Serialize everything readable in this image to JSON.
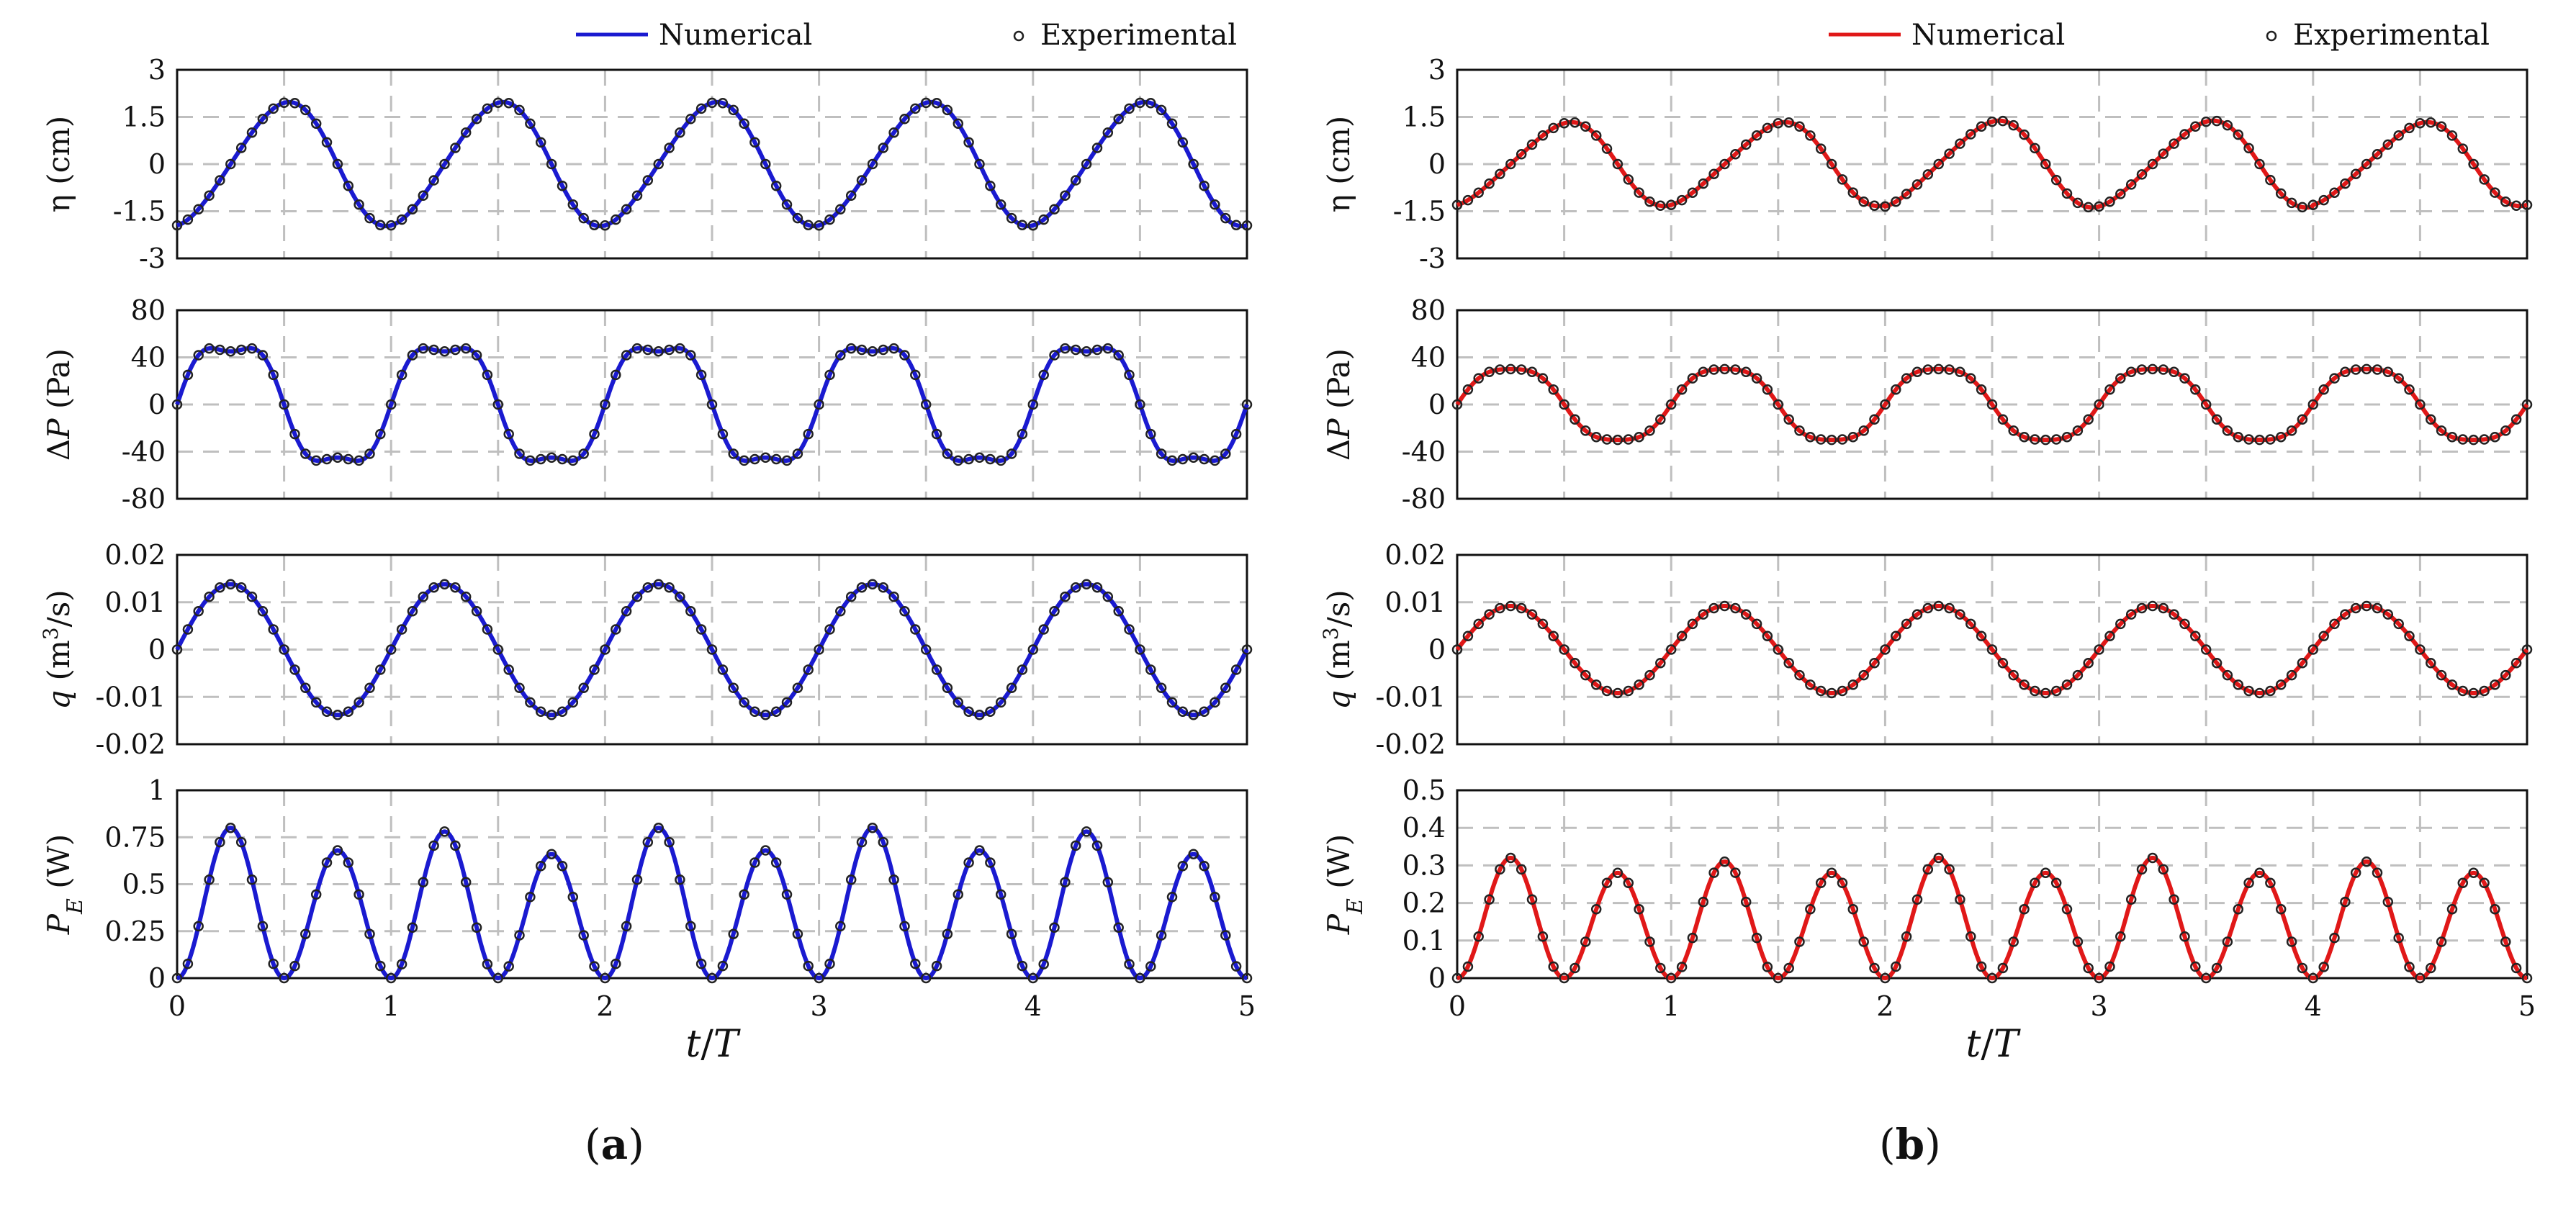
{
  "chart_data": [
    {
      "id": "a",
      "caption": {
        "open": "(",
        "letter": "a",
        "close": ")"
      },
      "color": "#1a1ad0",
      "legend": {
        "line": "Numerical",
        "marker": "Experimental"
      },
      "xlabel": {
        "t": "t",
        "slash": "/",
        "T": "T"
      },
      "xlim": [
        0,
        5
      ],
      "xticks": [
        "0",
        "1",
        "2",
        "3",
        "4",
        "5"
      ],
      "panels": [
        {
          "key": "eta",
          "type": "line",
          "ylabel": {
            "parts": [
              {
                "t": "η (cm)",
                "s": ""
              }
            ]
          },
          "ylim": [
            -3,
            3
          ],
          "yticks": [
            "-3",
            "-1.5",
            "0",
            "1.5",
            "3"
          ],
          "grid": true,
          "model": {
            "kind": "sine",
            "offset": 0.15,
            "amps": [
              1.95,
              1.95,
              1.95,
              1.95,
              1.95
            ],
            "amp_dev": 0.1,
            "phase": -90,
            "mod": 0.6
          }
        },
        {
          "key": "dp",
          "type": "line",
          "ylabel": {
            "parts": [
              {
                "t": "Δ",
                "s": ""
              },
              {
                "t": "P",
                "s": "i"
              },
              {
                "t": " (Pa)",
                "s": ""
              }
            ]
          },
          "ylim": [
            -80,
            80
          ],
          "yticks": [
            "-80",
            "-40",
            "0",
            "40",
            "80"
          ],
          "grid": true,
          "model": {
            "kind": "sine2",
            "a1": 55,
            "a2": 10,
            "h2": 3,
            "phase": 0,
            "dev": 2
          }
        },
        {
          "key": "q",
          "type": "line",
          "ylabel": {
            "parts": [
              {
                "t": "q",
                "s": "i"
              },
              {
                "t": " (m",
                "s": ""
              },
              {
                "t": "3",
                "s": "sup"
              },
              {
                "t": "/s)",
                "s": ""
              }
            ]
          },
          "ylim": [
            -0.02,
            0.02
          ],
          "yticks": [
            "-0.02",
            "-0.01",
            "0",
            "0.01",
            "0.02"
          ],
          "grid": true,
          "model": {
            "kind": "sine2",
            "a1": 0.0138,
            "a2": 0.0,
            "h2": 3,
            "phase": 8,
            "dev": 0.0002
          }
        },
        {
          "key": "pe",
          "type": "line",
          "ylabel": {
            "parts": [
              {
                "t": "P",
                "s": "i"
              },
              {
                "t": "E",
                "s": "sub-i"
              },
              {
                "t": " (W)",
                "s": ""
              }
            ]
          },
          "ylim": [
            0,
            1
          ],
          "yticks": [
            "0",
            "0.25",
            "0.5",
            "0.75",
            "1"
          ],
          "grid": true,
          "model": {
            "kind": "power",
            "peaks": [
              0.8,
              0.68,
              0.78,
              0.66,
              0.8,
              0.68,
              0.8,
              0.68,
              0.78,
              0.66
            ]
          }
        }
      ]
    },
    {
      "id": "b",
      "caption": {
        "open": "(",
        "letter": "b",
        "close": ")"
      },
      "color": "#e01818",
      "legend": {
        "line": "Numerical",
        "marker": "Experimental"
      },
      "xlabel": {
        "t": "t",
        "slash": "/",
        "T": "T"
      },
      "xlim": [
        0,
        5
      ],
      "xticks": [
        "0",
        "1",
        "2",
        "3",
        "4",
        "5"
      ],
      "panels": [
        {
          "key": "eta",
          "type": "line",
          "ylabel": {
            "parts": [
              {
                "t": "η (cm)",
                "s": ""
              }
            ]
          },
          "ylim": [
            -3,
            3
          ],
          "yticks": [
            "-3",
            "-1.5",
            "0",
            "1.5",
            "3"
          ],
          "grid": true,
          "model": {
            "kind": "sine",
            "offset": 0.15,
            "amps": [
              1.3,
              1.3,
              1.35,
              1.35,
              1.3
            ],
            "amp_dev": 0.08,
            "phase": -90,
            "mod": 0.5
          }
        },
        {
          "key": "dp",
          "type": "line",
          "ylabel": {
            "parts": [
              {
                "t": "Δ",
                "s": ""
              },
              {
                "t": "P",
                "s": "i"
              },
              {
                "t": " (Pa)",
                "s": ""
              }
            ]
          },
          "ylim": [
            -80,
            80
          ],
          "yticks": [
            "-80",
            "-40",
            "0",
            "40",
            "80"
          ],
          "grid": true,
          "model": {
            "kind": "sine2",
            "a1": 33,
            "a2": 3,
            "h2": 3,
            "phase": 0,
            "dev": 1.5
          }
        },
        {
          "key": "q",
          "type": "line",
          "ylabel": {
            "parts": [
              {
                "t": "q",
                "s": "i"
              },
              {
                "t": " (m",
                "s": ""
              },
              {
                "t": "3",
                "s": "sup"
              },
              {
                "t": "/s)",
                "s": ""
              }
            ]
          },
          "ylim": [
            -0.02,
            0.02
          ],
          "yticks": [
            "-0.02",
            "-0.01",
            "0",
            "0.01",
            "0.02"
          ],
          "grid": true,
          "model": {
            "kind": "sine2",
            "a1": 0.0092,
            "a2": 0.0,
            "h2": 3,
            "phase": 0,
            "dev": 0.0002
          }
        },
        {
          "key": "pe",
          "type": "line",
          "ylabel": {
            "parts": [
              {
                "t": "P",
                "s": "i"
              },
              {
                "t": "E",
                "s": "sub-i"
              },
              {
                "t": " (W)",
                "s": ""
              }
            ]
          },
          "ylim": [
            0,
            0.5
          ],
          "yticks": [
            "0",
            "0.1",
            "0.2",
            "0.3",
            "0.4",
            "0.5"
          ],
          "grid": true,
          "model": {
            "kind": "power",
            "peaks": [
              0.32,
              0.28,
              0.31,
              0.28,
              0.32,
              0.28,
              0.32,
              0.28,
              0.31,
              0.28
            ]
          }
        }
      ]
    }
  ]
}
